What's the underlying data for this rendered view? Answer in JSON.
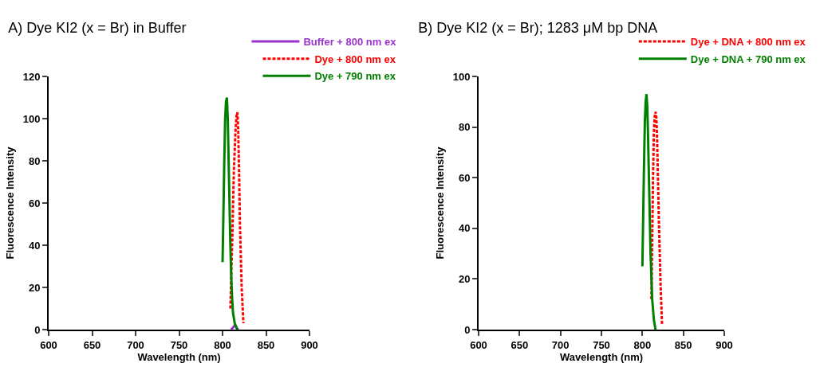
{
  "chart_data": [
    {
      "type": "line",
      "title": "A) Dye KI2 (x = Br) in Buffer",
      "xlabel": "Wavelength (nm)",
      "ylabel": "Fluorescence Intensity",
      "xlim": [
        600,
        900
      ],
      "xticks": [
        600,
        650,
        700,
        750,
        800,
        850,
        900
      ],
      "ylim": [
        0,
        120
      ],
      "yticks": [
        0,
        20,
        40,
        60,
        80,
        100,
        120
      ],
      "grid": false,
      "legend": "top right",
      "marker": "none",
      "series": [
        {
          "name": "Buffer + 800 nm ex",
          "color": "#9933cc",
          "line_style": "solid",
          "x": [
            810,
            812,
            814,
            816,
            818
          ],
          "values": [
            0,
            1,
            2,
            1,
            0
          ]
        },
        {
          "name": "Dye + 800 nm ex",
          "color": "#ff0000",
          "line_style": "dashed",
          "x": [
            809,
            811,
            813,
            815,
            816,
            817,
            818,
            819,
            820,
            822,
            824
          ],
          "values": [
            10,
            40,
            75,
            95,
            101,
            103,
            95,
            75,
            50,
            20,
            3
          ]
        },
        {
          "name": "Dye + 790 nm ex",
          "color": "#008000",
          "line_style": "solid",
          "x": [
            800,
            801,
            802,
            803,
            804,
            805,
            806,
            807,
            808,
            809,
            810,
            811,
            812,
            814,
            816,
            817
          ],
          "values": [
            32,
            55,
            80,
            100,
            108,
            110,
            100,
            80,
            60,
            40,
            25,
            15,
            8,
            3,
            1,
            0
          ]
        }
      ]
    },
    {
      "type": "line",
      "title": "B) Dye KI2 (x = Br); 1283 μM bp DNA",
      "xlabel": "Wavelength (nm)",
      "ylabel": "Fluorescence Intensity",
      "xlim": [
        600,
        900
      ],
      "xticks": [
        600,
        650,
        700,
        750,
        800,
        850,
        900
      ],
      "ylim": [
        0,
        100
      ],
      "yticks": [
        0,
        20,
        40,
        60,
        80,
        100
      ],
      "grid": false,
      "legend": "top right",
      "marker": "none",
      "series": [
        {
          "name": "Dye + DNA + 800 nm ex",
          "color": "#ff0000",
          "line_style": "dashed",
          "x": [
            811,
            812,
            813,
            814,
            815,
            816,
            817,
            818,
            819,
            820,
            822,
            824
          ],
          "values": [
            12,
            35,
            60,
            78,
            84,
            86,
            84,
            75,
            60,
            45,
            20,
            2
          ]
        },
        {
          "name": "Dye + DNA + 790 nm ex",
          "color": "#008000",
          "line_style": "solid",
          "x": [
            800,
            801,
            802,
            803,
            804,
            805,
            806,
            807,
            808,
            809,
            810,
            812,
            814,
            816
          ],
          "values": [
            25,
            45,
            65,
            82,
            90,
            93,
            88,
            75,
            60,
            45,
            30,
            12,
            4,
            0
          ]
        }
      ]
    }
  ]
}
